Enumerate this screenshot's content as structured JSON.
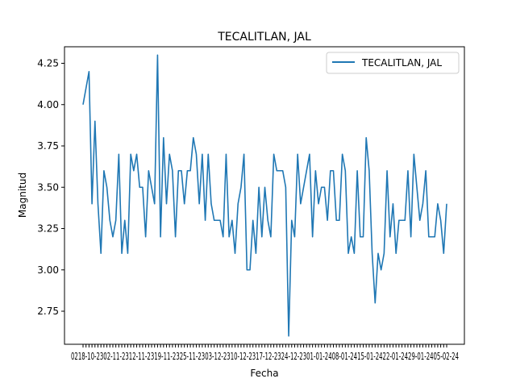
{
  "chart_data": {
    "type": "line",
    "title": "TECALITLAN, JAL",
    "xlabel": "Fecha",
    "ylabel": "Magnitud",
    "ylim": [
      2.55,
      4.35
    ],
    "yticks": [
      "2.75",
      "3.00",
      "3.25",
      "3.50",
      "3.75",
      "4.00",
      "4.25"
    ],
    "ytick_values": [
      2.75,
      3.0,
      3.25,
      3.5,
      3.75,
      4.0,
      4.25
    ],
    "grid": false,
    "legend": "top-right",
    "x_tick_labels_note": "dense overlapping date labels, illegible",
    "series": [
      {
        "name": "TECALITLAN, JAL",
        "color": "#1f77b4",
        "values": [
          4.0,
          4.1,
          4.2,
          3.4,
          3.9,
          3.4,
          3.1,
          3.6,
          3.5,
          3.3,
          3.2,
          3.3,
          3.7,
          3.1,
          3.3,
          3.1,
          3.7,
          3.6,
          3.7,
          3.5,
          3.5,
          3.2,
          3.6,
          3.5,
          3.4,
          4.3,
          3.2,
          3.8,
          3.4,
          3.7,
          3.6,
          3.2,
          3.6,
          3.6,
          3.4,
          3.6,
          3.6,
          3.8,
          3.7,
          3.4,
          3.7,
          3.3,
          3.7,
          3.4,
          3.3,
          3.3,
          3.3,
          3.2,
          3.7,
          3.2,
          3.3,
          3.1,
          3.4,
          3.5,
          3.7,
          3.0,
          3.0,
          3.3,
          3.1,
          3.5,
          3.2,
          3.5,
          3.3,
          3.2,
          3.7,
          3.6,
          3.6,
          3.6,
          3.5,
          2.6,
          3.3,
          3.2,
          3.7,
          3.4,
          3.5,
          3.6,
          3.7,
          3.2,
          3.6,
          3.4,
          3.5,
          3.5,
          3.3,
          3.6,
          3.6,
          3.3,
          3.3,
          3.7,
          3.6,
          3.1,
          3.2,
          3.1,
          3.6,
          3.2,
          3.2,
          3.8,
          3.6,
          3.1,
          2.8,
          3.1,
          3.0,
          3.1,
          3.6,
          3.2,
          3.4,
          3.1,
          3.3,
          3.3,
          3.3,
          3.6,
          3.2,
          3.7,
          3.5,
          3.3,
          3.4,
          3.6,
          3.2,
          3.2,
          3.2,
          3.4,
          3.3,
          3.1,
          3.4
        ]
      }
    ]
  }
}
